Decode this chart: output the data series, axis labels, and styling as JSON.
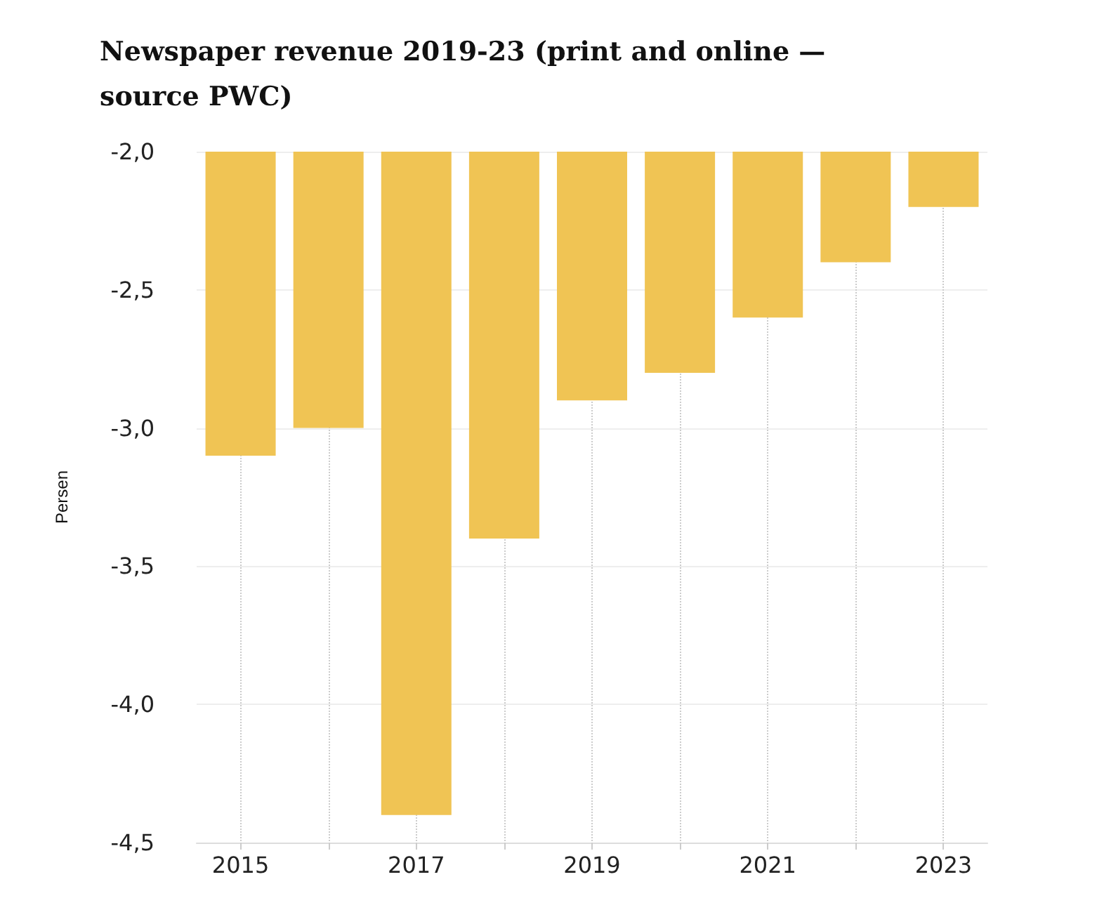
{
  "chart_data": {
    "type": "bar",
    "title": "Newspaper revenue 2019-23 (print and online —\nsource PWC)",
    "ylabel": "Persen",
    "x": [
      2015,
      2016,
      2017,
      2018,
      2019,
      2020,
      2021,
      2022,
      2023
    ],
    "values": [
      -3.1,
      -3.0,
      -4.4,
      -3.4,
      -2.9,
      -2.8,
      -2.6,
      -2.4,
      -2.2
    ],
    "color": "#f0c454",
    "xlim": [
      2014.5,
      2023.5
    ],
    "xticks": [
      2015,
      {
        "value": 2016,
        "label": null
      },
      2017,
      {
        "value": 2018,
        "label": null
      },
      2019,
      {
        "value": 2020,
        "label": null
      },
      2021,
      {
        "value": 2022,
        "label": null
      },
      2023
    ],
    "ylim": [
      -4.5,
      -2.0
    ],
    "yticks": [
      {
        "value": -4.5,
        "label": "-4,5"
      },
      {
        "value": -4.0,
        "label": "-4,0"
      },
      {
        "value": -3.5,
        "label": "-3,5"
      },
      {
        "value": -3.0,
        "label": "-3,0"
      },
      {
        "value": -2.5,
        "label": "-2,5"
      },
      {
        "value": -2.0,
        "label": "-2,0"
      }
    ],
    "grid": true
  }
}
